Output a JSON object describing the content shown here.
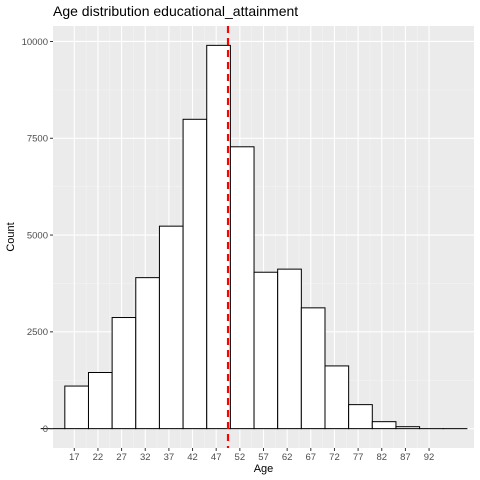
{
  "chart_data": {
    "type": "bar",
    "title": "Age distribution educational_attainment",
    "xlabel": "Age",
    "ylabel": "Count",
    "x_tick_labels": [
      "17",
      "22",
      "27",
      "32",
      "37",
      "42",
      "47",
      "52",
      "57",
      "62",
      "67",
      "72",
      "77",
      "82",
      "87",
      "92"
    ],
    "y_tick_labels": [
      "0",
      "2500",
      "5000",
      "7500",
      "10000"
    ],
    "y_ticks": [
      0,
      2500,
      5000,
      7500,
      10000
    ],
    "xlim": [
      12.5,
      101.5
    ],
    "ylim": [
      -500,
      10400
    ],
    "bin_width": 5,
    "bins": [
      {
        "start": 10,
        "end": 15,
        "count": 0
      },
      {
        "start": 15,
        "end": 20,
        "count": 1100
      },
      {
        "start": 20,
        "end": 25,
        "count": 1450
      },
      {
        "start": 25,
        "end": 30,
        "count": 2870
      },
      {
        "start": 30,
        "end": 35,
        "count": 3900
      },
      {
        "start": 35,
        "end": 40,
        "count": 5230
      },
      {
        "start": 40,
        "end": 45,
        "count": 7990
      },
      {
        "start": 45,
        "end": 50,
        "count": 9900
      },
      {
        "start": 50,
        "end": 55,
        "count": 7280
      },
      {
        "start": 55,
        "end": 60,
        "count": 4040
      },
      {
        "start": 60,
        "end": 65,
        "count": 4120
      },
      {
        "start": 65,
        "end": 70,
        "count": 3120
      },
      {
        "start": 70,
        "end": 75,
        "count": 1620
      },
      {
        "start": 75,
        "end": 80,
        "count": 620
      },
      {
        "start": 80,
        "end": 85,
        "count": 180
      },
      {
        "start": 85,
        "end": 90,
        "count": 50
      },
      {
        "start": 90,
        "end": 95,
        "count": 0
      },
      {
        "start": 95,
        "end": 100,
        "count": 0
      }
    ],
    "mean_line": {
      "x": 49.5,
      "style": "dashed"
    },
    "grid": true,
    "legend": "none",
    "colors": {
      "panel_background": "#ebebeb",
      "grid_major": "#ffffff",
      "grid_minor": "#f4f4f4",
      "bar_fill": "#ffffff",
      "bar_stroke": "#000000",
      "mean_line": "#ff0000"
    }
  }
}
